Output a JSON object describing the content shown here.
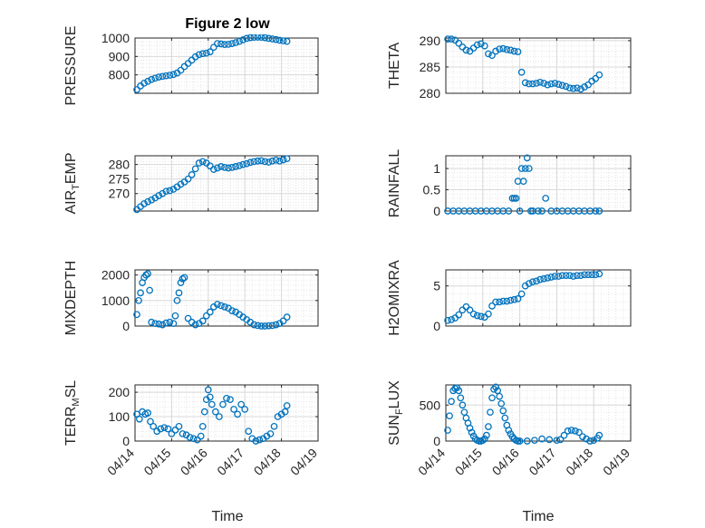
{
  "title": "Figure 2 low",
  "xlabel": "Time",
  "colors": {
    "marker": "#0072BD",
    "axis": "#262626",
    "grid": "#d9d9d9",
    "minor_grid": "#e6e6e6"
  },
  "chart_data": [
    {
      "type": "scatter",
      "ylabel": "PRESSURE",
      "ylabel_sub": "",
      "ylabel_post": "",
      "xlim": [
        14,
        19
      ],
      "ylim": [
        700,
        1000
      ],
      "yticks": [
        800,
        900,
        1000
      ],
      "ytick_labels": [
        "800",
        "900",
        "1000"
      ],
      "xticks": [
        14,
        15,
        16,
        17,
        18,
        19
      ],
      "xtick_labels": [
        "04/14",
        "04/15",
        "04/16",
        "04/17",
        "04/18",
        "04/19"
      ],
      "x": [
        14.05,
        14.15,
        14.25,
        14.35,
        14.45,
        14.55,
        14.65,
        14.75,
        14.85,
        14.95,
        15.05,
        15.15,
        15.25,
        15.35,
        15.45,
        15.55,
        15.65,
        15.75,
        15.85,
        15.95,
        16.05,
        16.15,
        16.25,
        16.35,
        16.45,
        16.55,
        16.65,
        16.75,
        16.85,
        16.95,
        17.05,
        17.15,
        17.25,
        17.35,
        17.45,
        17.55,
        17.65,
        17.75,
        17.85,
        17.95,
        18.05,
        18.15
      ],
      "y": [
        720,
        740,
        755,
        765,
        775,
        782,
        788,
        792,
        795,
        798,
        802,
        810,
        825,
        845,
        862,
        880,
        898,
        910,
        915,
        918,
        925,
        950,
        970,
        968,
        965,
        966,
        970,
        975,
        982,
        990,
        998,
        1002,
        1004,
        1005,
        1004,
        1002,
        998,
        995,
        992,
        988,
        985,
        982
      ]
    },
    {
      "type": "scatter",
      "ylabel": "THETA",
      "ylabel_sub": "",
      "ylabel_post": "",
      "xlim": [
        14,
        19
      ],
      "ylim": [
        280,
        290.5
      ],
      "yticks": [
        280,
        285,
        290
      ],
      "ytick_labels": [
        "280",
        "285",
        "290"
      ],
      "xticks": [
        14,
        15,
        16,
        17,
        18,
        19
      ],
      "xtick_labels": [
        "04/14",
        "04/15",
        "04/16",
        "04/17",
        "04/18",
        "04/19"
      ],
      "x": [
        14.05,
        14.15,
        14.25,
        14.35,
        14.45,
        14.55,
        14.65,
        14.75,
        14.85,
        14.95,
        15.05,
        15.15,
        15.25,
        15.35,
        15.45,
        15.55,
        15.65,
        15.75,
        15.85,
        15.95,
        16.05,
        16.15,
        16.25,
        16.35,
        16.45,
        16.55,
        16.65,
        16.75,
        16.85,
        16.95,
        17.05,
        17.15,
        17.25,
        17.35,
        17.45,
        17.55,
        17.65,
        17.75,
        17.85,
        17.95,
        18.05,
        18.15
      ],
      "y": [
        290.3,
        290.3,
        290.1,
        289.5,
        288.8,
        288.2,
        288.0,
        288.6,
        289.2,
        289.4,
        289.0,
        287.5,
        287.2,
        288.0,
        288.4,
        288.5,
        288.3,
        288.2,
        288.0,
        287.9,
        284.0,
        282.0,
        281.8,
        281.8,
        281.9,
        282.1,
        281.9,
        281.6,
        281.8,
        281.9,
        281.7,
        281.5,
        281.3,
        281.0,
        280.9,
        281.0,
        280.8,
        281.2,
        281.6,
        282.3,
        282.8,
        283.5
      ]
    },
    {
      "type": "scatter",
      "ylabel": "AIR",
      "ylabel_sub": "T",
      "ylabel_post": "EMP",
      "xlim": [
        14,
        19
      ],
      "ylim": [
        264,
        283
      ],
      "yticks": [
        270,
        275,
        280
      ],
      "ytick_labels": [
        "270",
        "275",
        "280"
      ],
      "xticks": [
        14,
        15,
        16,
        17,
        18,
        19
      ],
      "xtick_labels": [
        "04/14",
        "04/15",
        "04/16",
        "04/17",
        "04/18",
        "04/19"
      ],
      "x": [
        14.05,
        14.15,
        14.25,
        14.35,
        14.45,
        14.55,
        14.65,
        14.75,
        14.85,
        14.95,
        15.05,
        15.15,
        15.25,
        15.35,
        15.45,
        15.55,
        15.65,
        15.75,
        15.85,
        15.95,
        16.05,
        16.15,
        16.25,
        16.35,
        16.45,
        16.55,
        16.65,
        16.75,
        16.85,
        16.95,
        17.05,
        17.15,
        17.25,
        17.35,
        17.45,
        17.55,
        17.65,
        17.75,
        17.85,
        17.95,
        18.05,
        18.15
      ],
      "y": [
        264.5,
        265.5,
        266.5,
        267.2,
        267.8,
        268.5,
        269.3,
        270.0,
        270.8,
        271.0,
        271.5,
        272.3,
        273.2,
        274.0,
        275.0,
        276.5,
        278.5,
        280.5,
        281.0,
        280.5,
        279.5,
        278.3,
        278.8,
        279.3,
        279.0,
        278.8,
        279.0,
        279.3,
        279.6,
        280.0,
        280.3,
        280.7,
        281.0,
        281.2,
        281.3,
        281.0,
        280.8,
        281.2,
        281.5,
        281.2,
        281.6,
        282.0
      ]
    },
    {
      "type": "scatter",
      "ylabel": "RAINFALL",
      "ylabel_sub": "",
      "ylabel_post": "",
      "xlim": [
        14,
        19
      ],
      "ylim": [
        0,
        1.3
      ],
      "yticks": [
        0,
        0.5,
        1
      ],
      "ytick_labels": [
        "0",
        "0.5",
        "1"
      ],
      "xticks": [
        14,
        15,
        16,
        17,
        18,
        19
      ],
      "xtick_labels": [
        "04/14",
        "04/15",
        "04/16",
        "04/17",
        "04/18",
        "04/19"
      ],
      "x": [
        14.05,
        14.2,
        14.35,
        14.5,
        14.65,
        14.8,
        14.95,
        15.1,
        15.25,
        15.4,
        15.55,
        15.7,
        15.8,
        15.85,
        15.9,
        15.95,
        16.0,
        16.05,
        16.1,
        16.15,
        16.2,
        16.25,
        16.3,
        16.35,
        16.5,
        16.6,
        16.7,
        16.85,
        17.0,
        17.15,
        17.3,
        17.45,
        17.6,
        17.75,
        17.9,
        18.05,
        18.15
      ],
      "y": [
        0,
        0,
        0,
        0,
        0,
        0,
        0,
        0,
        0,
        0,
        0,
        0,
        0.3,
        0.3,
        0.3,
        0.7,
        0,
        1.0,
        0.7,
        1.0,
        1.25,
        1.0,
        0,
        0,
        0,
        0,
        0.3,
        0,
        0,
        0,
        0,
        0,
        0,
        0,
        0,
        0,
        0
      ]
    },
    {
      "type": "scatter",
      "ylabel": "MIXDEPTH",
      "ylabel_sub": "",
      "ylabel_post": "",
      "xlim": [
        14,
        19
      ],
      "ylim": [
        0,
        2200
      ],
      "yticks": [
        0,
        1000,
        2000
      ],
      "ytick_labels": [
        "0",
        "1000",
        "2000"
      ],
      "xticks": [
        14,
        15,
        16,
        17,
        18,
        19
      ],
      "xtick_labels": [
        "04/14",
        "04/15",
        "04/16",
        "04/17",
        "04/18",
        "04/19"
      ],
      "x": [
        14.05,
        14.1,
        14.15,
        14.2,
        14.25,
        14.3,
        14.35,
        14.4,
        14.45,
        14.55,
        14.65,
        14.75,
        14.85,
        14.95,
        15.05,
        15.1,
        15.15,
        15.2,
        15.25,
        15.3,
        15.35,
        15.45,
        15.55,
        15.65,
        15.75,
        15.85,
        15.95,
        16.05,
        16.15,
        16.25,
        16.35,
        16.45,
        16.55,
        16.65,
        16.75,
        16.85,
        16.95,
        17.05,
        17.15,
        17.25,
        17.35,
        17.45,
        17.55,
        17.65,
        17.75,
        17.85,
        17.95,
        18.05,
        18.15
      ],
      "y": [
        450,
        1000,
        1300,
        1700,
        1900,
        2000,
        2050,
        1400,
        150,
        100,
        80,
        50,
        120,
        150,
        100,
        400,
        1000,
        1300,
        1700,
        1850,
        1900,
        300,
        150,
        50,
        100,
        200,
        400,
        550,
        750,
        850,
        800,
        750,
        700,
        600,
        550,
        450,
        350,
        250,
        150,
        50,
        20,
        0,
        0,
        10,
        20,
        50,
        100,
        200,
        350
      ]
    },
    {
      "type": "scatter",
      "ylabel": "H2OMIXRA",
      "ylabel_sub": "",
      "ylabel_post": "",
      "xlim": [
        14,
        19
      ],
      "ylim": [
        0,
        7
      ],
      "yticks": [
        0,
        5
      ],
      "ytick_labels": [
        "0",
        "5"
      ],
      "xticks": [
        14,
        15,
        16,
        17,
        18,
        19
      ],
      "xtick_labels": [
        "04/14",
        "04/15",
        "04/16",
        "04/17",
        "04/18",
        "04/19"
      ],
      "x": [
        14.05,
        14.15,
        14.25,
        14.35,
        14.45,
        14.55,
        14.65,
        14.75,
        14.85,
        14.95,
        15.05,
        15.15,
        15.25,
        15.35,
        15.45,
        15.55,
        15.65,
        15.75,
        15.85,
        15.95,
        16.05,
        16.15,
        16.25,
        16.35,
        16.45,
        16.55,
        16.65,
        16.75,
        16.85,
        16.95,
        17.05,
        17.15,
        17.25,
        17.35,
        17.45,
        17.55,
        17.65,
        17.75,
        17.85,
        17.95,
        18.05,
        18.15
      ],
      "y": [
        0.7,
        0.8,
        1.0,
        1.4,
        2.0,
        2.4,
        2.0,
        1.5,
        1.3,
        1.2,
        1.1,
        1.5,
        2.5,
        3.0,
        3.0,
        3.1,
        3.1,
        3.2,
        3.3,
        3.4,
        4.0,
        5.0,
        5.3,
        5.5,
        5.6,
        5.8,
        5.9,
        6.0,
        6.1,
        6.2,
        6.2,
        6.3,
        6.3,
        6.3,
        6.2,
        6.3,
        6.3,
        6.4,
        6.4,
        6.4,
        6.4,
        6.5
      ]
    },
    {
      "type": "scatter",
      "ylabel": "TERR",
      "ylabel_sub": "M",
      "ylabel_post": "SL",
      "xlim": [
        14,
        19
      ],
      "ylim": [
        0,
        230
      ],
      "yticks": [
        0,
        100,
        200
      ],
      "ytick_labels": [
        "0",
        "100",
        "200"
      ],
      "xticks": [
        14,
        15,
        16,
        17,
        18,
        19
      ],
      "xtick_labels": [
        "04/14",
        "04/15",
        "04/16",
        "04/17",
        "04/18",
        "04/19"
      ],
      "x": [
        14.05,
        14.12,
        14.2,
        14.28,
        14.35,
        14.42,
        14.5,
        14.6,
        14.7,
        14.8,
        14.9,
        15.0,
        15.1,
        15.2,
        15.3,
        15.4,
        15.5,
        15.6,
        15.7,
        15.8,
        15.85,
        15.9,
        15.95,
        16.0,
        16.05,
        16.1,
        16.2,
        16.3,
        16.4,
        16.5,
        16.6,
        16.7,
        16.8,
        16.9,
        17.0,
        17.1,
        17.2,
        17.3,
        17.4,
        17.5,
        17.6,
        17.7,
        17.8,
        17.9,
        18.0,
        18.1,
        18.15
      ],
      "y": [
        110,
        90,
        120,
        110,
        115,
        80,
        60,
        40,
        50,
        55,
        50,
        30,
        45,
        60,
        30,
        25,
        15,
        10,
        5,
        20,
        60,
        120,
        170,
        210,
        180,
        150,
        120,
        100,
        150,
        175,
        170,
        130,
        110,
        150,
        130,
        40,
        10,
        0,
        5,
        10,
        20,
        30,
        60,
        100,
        110,
        120,
        145
      ]
    },
    {
      "type": "scatter",
      "ylabel": "SUN",
      "ylabel_sub": "F",
      "ylabel_post": "LUX",
      "xlim": [
        14,
        19
      ],
      "ylim": [
        0,
        780
      ],
      "yticks": [
        0,
        500
      ],
      "ytick_labels": [
        "0",
        "500"
      ],
      "xticks": [
        14,
        15,
        16,
        17,
        18,
        19
      ],
      "xtick_labels": [
        "04/14",
        "04/15",
        "04/16",
        "04/17",
        "04/18",
        "04/19"
      ],
      "x": [
        14.05,
        14.1,
        14.15,
        14.2,
        14.25,
        14.3,
        14.35,
        14.4,
        14.45,
        14.5,
        14.55,
        14.6,
        14.65,
        14.7,
        14.75,
        14.8,
        14.85,
        14.9,
        14.95,
        15.0,
        15.05,
        15.1,
        15.15,
        15.2,
        15.25,
        15.3,
        15.35,
        15.4,
        15.45,
        15.5,
        15.55,
        15.6,
        15.65,
        15.7,
        15.75,
        15.8,
        15.85,
        15.9,
        15.95,
        16.0,
        16.2,
        16.4,
        16.6,
        16.8,
        17.0,
        17.1,
        17.2,
        17.3,
        17.4,
        17.5,
        17.6,
        17.7,
        17.8,
        17.9,
        18.0,
        18.1,
        18.15
      ],
      "y": [
        150,
        350,
        550,
        700,
        730,
        740,
        700,
        600,
        500,
        400,
        320,
        250,
        180,
        120,
        70,
        30,
        10,
        0,
        0,
        10,
        30,
        80,
        200,
        400,
        600,
        720,
        750,
        700,
        620,
        520,
        420,
        320,
        220,
        150,
        100,
        60,
        30,
        10,
        0,
        0,
        0,
        10,
        30,
        20,
        10,
        20,
        80,
        140,
        150,
        140,
        120,
        60,
        30,
        0,
        10,
        40,
        80
      ]
    }
  ]
}
